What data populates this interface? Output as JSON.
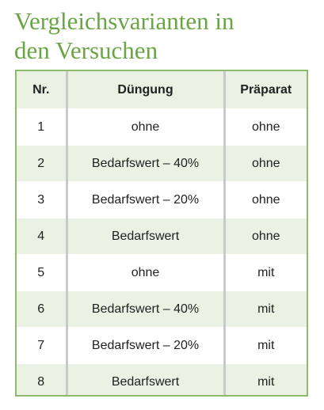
{
  "title": {
    "line1": "Vergleichsvarianten in",
    "line2": "den Versuchen"
  },
  "table": {
    "headers": [
      "Nr.",
      "Düngung",
      "Präparat"
    ],
    "rows": [
      {
        "nr": "1",
        "duengung": "ohne",
        "praeparat": "ohne"
      },
      {
        "nr": "2",
        "duengung": "Bedarfswert – 40%",
        "praeparat": "ohne"
      },
      {
        "nr": "3",
        "duengung": "Bedarfswert – 20%",
        "praeparat": "ohne"
      },
      {
        "nr": "4",
        "duengung": "Bedarfswert",
        "praeparat": "ohne"
      },
      {
        "nr": "5",
        "duengung": "ohne",
        "praeparat": "mit"
      },
      {
        "nr": "6",
        "duengung": "Bedarfswert – 40%",
        "praeparat": "mit"
      },
      {
        "nr": "7",
        "duengung": "Bedarfswert – 20%",
        "praeparat": "mit"
      },
      {
        "nr": "8",
        "duengung": "Bedarfswert",
        "praeparat": "mit"
      }
    ]
  },
  "colors": {
    "accent": "#6aa544",
    "border": "#8bbb6a",
    "row_shade": "#ebf2e4",
    "divider": "#c9c9c9"
  }
}
